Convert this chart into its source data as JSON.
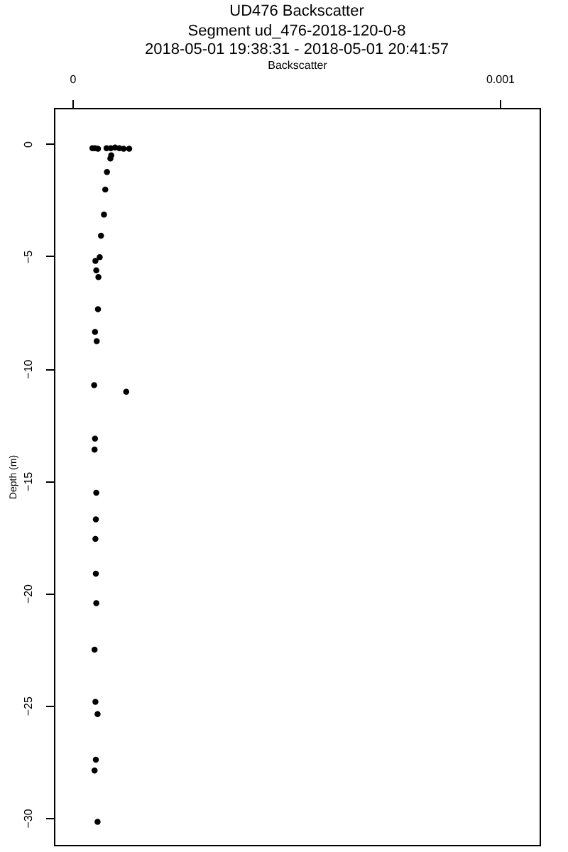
{
  "chart_data": {
    "type": "scatter",
    "title": "UD476 Backscatter",
    "subtitle": "Segment ud_476-2018-120-0-8\n2018-05-01 19:38:31 - 2018-05-01 20:41:57",
    "xlabel": "Backscatter",
    "ylabel": "Depth (m)",
    "x": [
      4.7e-05,
      5.3e-05,
      6e-05,
      8e-05,
      9e-05,
      0.0001,
      0.00011,
      0.00012,
      0.000133,
      9.1e-05,
      8.9e-05,
      8.1e-05,
      7.7e-05,
      7.4e-05,
      6.7e-05,
      6.4e-05,
      5.4e-05,
      5.6e-05,
      6.1e-05,
      6e-05,
      5.3e-05,
      5.7e-05,
      5.1e-05,
      0.000126,
      5.3e-05,
      5.2e-05,
      5.6e-05,
      5.5e-05,
      5.4e-05,
      5.5e-05,
      5.6e-05,
      5.2e-05,
      5.4e-05,
      5.9e-05,
      5.5e-05,
      5.2e-05,
      5.9e-05
    ],
    "series": [
      {
        "color": "#000000",
        "values": [
          -0.19,
          -0.19,
          -0.22,
          -0.19,
          -0.19,
          -0.16,
          -0.19,
          -0.22,
          -0.22,
          -0.51,
          -0.65,
          -1.25,
          -2.03,
          -3.15,
          -4.09,
          -5.04,
          -5.21,
          -5.63,
          -5.93,
          -7.36,
          -8.37,
          -8.78,
          -10.74,
          -11.03,
          -13.12,
          -13.61,
          -15.53,
          -16.71,
          -17.58,
          -19.13,
          -20.44,
          -22.51,
          -24.83,
          -25.38,
          -27.41,
          -27.89,
          -30.17
        ]
      }
    ],
    "xlim": [
      -4.3e-05,
      0.001093
    ],
    "xticks": [
      0,
      0.001
    ],
    "ylim": [
      -31.2,
      1.6
    ],
    "yticks": [
      -30,
      -25,
      -20,
      -15,
      -10,
      -5,
      0
    ],
    "marker": "circle",
    "grid": false
  }
}
